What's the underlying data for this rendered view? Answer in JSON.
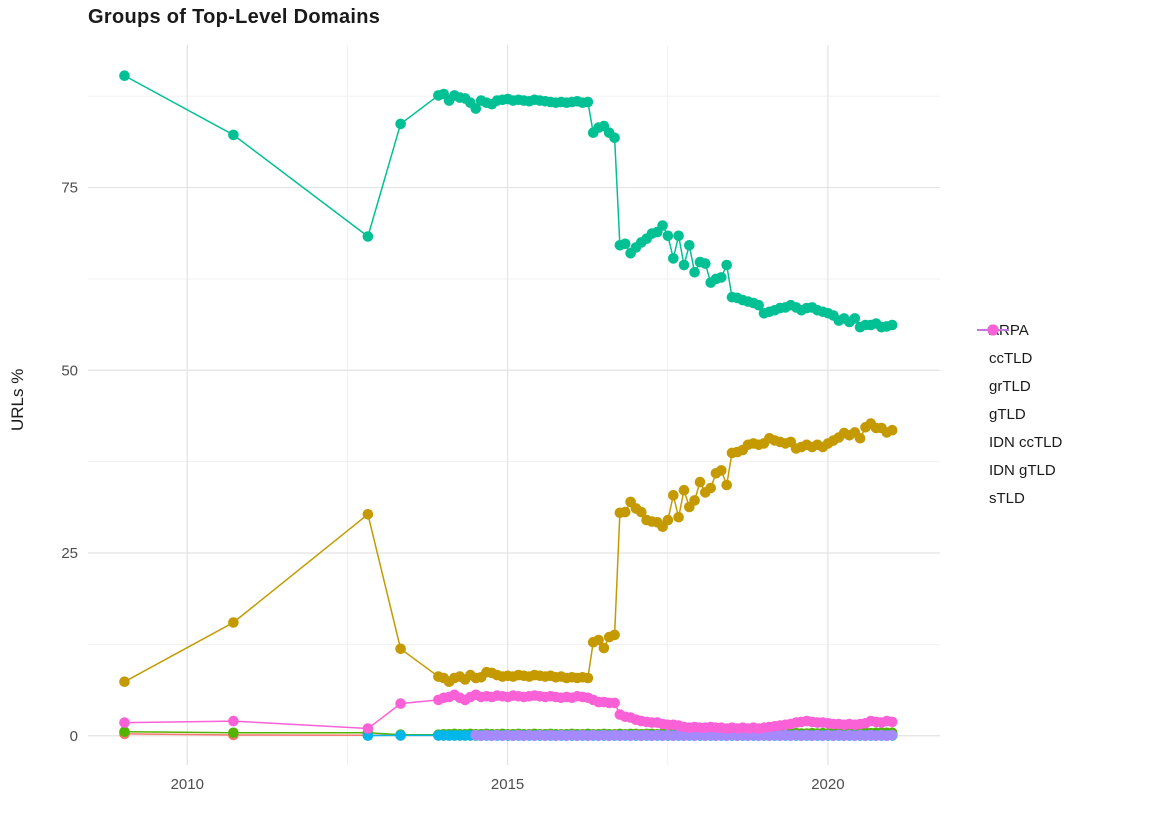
{
  "title": "Groups of Top-Level Domains",
  "chart_data": {
    "type": "line",
    "title": "Groups of Top-Level Domains",
    "xlabel": "",
    "ylabel": "URLs %",
    "xlim": [
      2008.45,
      2021.75
    ],
    "ylim": [
      -4,
      94.5
    ],
    "grid": true,
    "legend_position": "right",
    "x_major_ticks": [
      {
        "value": 2010,
        "label": "2010"
      },
      {
        "value": 2015,
        "label": "2015"
      },
      {
        "value": 2020,
        "label": "2020"
      }
    ],
    "x_minor_ticks": [
      2012.5,
      2017.5
    ],
    "y_major_ticks": [
      {
        "value": 0,
        "label": "0"
      },
      {
        "value": 25,
        "label": "25"
      },
      {
        "value": 50,
        "label": "50"
      },
      {
        "value": 75,
        "label": "75"
      }
    ],
    "y_minor_ticks": [
      12.5,
      37.5,
      62.5,
      87.5
    ],
    "series": [
      {
        "name": "ARPA",
        "color": "#F8766D",
        "segments": [
          {
            "x": [
              2009.02,
              2010.72,
              2012.82,
              2013.33
            ],
            "y": [
              0.25,
              0.1,
              0.08,
              0.05
            ]
          },
          {
            "x0": 2013.92,
            "dx": 0.08333,
            "count": 86,
            "fill": 0.05
          }
        ]
      },
      {
        "name": "ccTLD",
        "color": "#C49A00",
        "segments": [
          {
            "x": [
              2009.02,
              2010.72,
              2012.82,
              2013.33
            ],
            "y": [
              7.4,
              15.5,
              30.3,
              11.9
            ]
          },
          {
            "x0": 2013.92,
            "dx": 0.08333,
            "y": [
              8.1,
              7.9,
              7.4,
              7.9,
              8.1,
              7.7,
              8.3,
              7.9,
              8.0,
              8.7,
              8.6,
              8.3,
              8.1,
              8.2,
              8.1,
              8.3,
              8.2,
              8.1,
              8.3,
              8.2,
              8.1,
              8.2,
              8.0,
              8.1,
              7.9,
              8.0,
              7.9,
              8.0,
              7.9,
              12.8,
              13.1,
              12.0,
              13.5,
              13.8,
              30.5,
              30.6,
              32.0,
              31.1,
              30.6,
              29.5,
              29.3,
              29.2,
              28.6,
              29.5,
              32.9,
              29.9,
              33.6,
              31.3,
              32.2,
              34.7,
              33.3,
              33.9,
              35.9,
              36.3,
              34.3,
              38.7,
              38.8,
              39.1,
              39.8,
              40.0,
              39.8,
              40.0,
              40.7,
              40.4,
              40.2,
              40.0,
              40.2,
              39.3,
              39.5,
              39.8,
              39.5,
              39.8,
              39.5,
              40.0,
              40.4,
              40.8,
              41.4,
              41.1,
              41.5,
              40.7,
              42.2,
              42.7,
              42.1,
              42.1,
              41.5,
              41.8
            ]
          }
        ]
      },
      {
        "name": "grTLD",
        "color": "#53B400",
        "segments": [
          {
            "x": [
              2009.02,
              2010.72,
              2012.82,
              2013.33
            ],
            "y": [
              0.55,
              0.4,
              0.4,
              0.15
            ]
          },
          {
            "x0": 2013.92,
            "dx": 0.08333,
            "y": [
              0.15,
              0.2,
              0.2,
              0.25,
              0.2,
              0.2,
              0.25,
              0.2,
              0.2,
              0.25,
              0.2,
              0.2,
              0.25,
              0.2,
              0.2,
              0.25,
              0.2,
              0.2,
              0.25,
              0.2,
              0.2,
              0.25,
              0.2,
              0.2,
              0.2,
              0.25,
              0.2,
              0.2,
              0.25,
              0.2,
              0.2,
              0.25,
              0.2,
              0.2,
              0.25,
              0.2,
              0.25,
              0.25,
              0.2,
              0.25,
              0.25,
              0.2,
              0.25,
              0.25,
              0.2,
              0.25,
              0.25,
              0.25,
              0.25,
              0.25,
              0.25,
              0.3,
              0.25,
              0.25,
              0.3,
              0.25,
              0.3,
              0.25,
              0.3,
              0.3,
              0.3,
              0.3,
              0.3,
              0.3,
              0.35,
              0.3,
              0.3,
              0.35,
              0.3,
              0.3,
              0.35,
              0.3,
              0.35,
              0.3,
              0.35,
              0.35,
              0.3,
              0.35,
              0.35,
              0.35,
              0.4,
              0.35,
              0.4,
              0.4,
              0.4,
              0.4
            ]
          }
        ]
      },
      {
        "name": "gTLD",
        "color": "#00C094",
        "segments": [
          {
            "x": [
              2009.02,
              2010.72,
              2012.82,
              2013.33
            ],
            "y": [
              90.3,
              82.2,
              68.3,
              83.7
            ]
          },
          {
            "x0": 2013.92,
            "dx": 0.08333,
            "y": [
              87.6,
              87.8,
              86.9,
              87.6,
              87.3,
              87.2,
              86.6,
              85.8,
              86.9,
              86.6,
              86.4,
              86.9,
              87.0,
              87.1,
              86.9,
              87.0,
              86.9,
              86.8,
              87.0,
              86.9,
              86.8,
              86.7,
              86.6,
              86.7,
              86.6,
              86.7,
              86.8,
              86.6,
              86.7,
              82.5,
              83.2,
              83.4,
              82.5,
              81.8,
              67.1,
              67.3,
              66.0,
              66.8,
              67.5,
              68.0,
              68.7,
              68.9,
              69.8,
              68.4,
              65.3,
              68.4,
              64.4,
              67.1,
              63.4,
              64.8,
              64.6,
              62.0,
              62.5,
              62.7,
              64.4,
              60.0,
              59.9,
              59.6,
              59.4,
              59.2,
              58.9,
              57.8,
              58.0,
              58.2,
              58.5,
              58.6,
              58.9,
              58.6,
              58.2,
              58.5,
              58.6,
              58.2,
              58.0,
              57.8,
              57.5,
              56.8,
              57.1,
              56.6,
              57.1,
              55.9,
              56.2,
              56.2,
              56.4,
              55.9,
              56.0,
              56.2
            ]
          }
        ]
      },
      {
        "name": "IDN ccTLD",
        "color": "#00B6EB",
        "segments": [
          {
            "x": [
              2012.82,
              2013.33
            ],
            "y": [
              0.02,
              0.05
            ]
          },
          {
            "x0": 2013.92,
            "dx": 0.08333,
            "count": 86,
            "fill": 0.05
          }
        ]
      },
      {
        "name": "IDN gTLD",
        "color": "#A58AFF",
        "segments": [
          {
            "x0": 2014.5,
            "dx": 0.08333,
            "count": 79,
            "pattern": [
              0.1,
              0.0
            ]
          }
        ]
      },
      {
        "name": "sTLD",
        "color": "#FB61D7",
        "segments": [
          {
            "x": [
              2009.02,
              2010.72,
              2012.82,
              2013.33
            ],
            "y": [
              1.8,
              2.0,
              1.0,
              4.4
            ]
          },
          {
            "x0": 2013.92,
            "dx": 0.08333,
            "y": [
              4.9,
              5.2,
              5.3,
              5.6,
              5.2,
              4.9,
              5.3,
              5.6,
              5.3,
              5.4,
              5.3,
              5.5,
              5.4,
              5.3,
              5.5,
              5.4,
              5.3,
              5.4,
              5.5,
              5.4,
              5.3,
              5.4,
              5.3,
              5.2,
              5.3,
              5.2,
              5.4,
              5.3,
              5.2,
              4.9,
              4.6,
              4.6,
              4.5,
              4.5,
              2.9,
              2.6,
              2.5,
              2.2,
              2.0,
              1.9,
              1.8,
              1.8,
              1.6,
              1.5,
              1.5,
              1.4,
              1.2,
              1.1,
              1.2,
              1.1,
              1.1,
              1.2,
              1.1,
              1.1,
              1.0,
              1.1,
              1.0,
              1.1,
              1.0,
              1.1,
              1.0,
              1.1,
              1.2,
              1.3,
              1.4,
              1.5,
              1.6,
              1.8,
              1.9,
              2.0,
              1.9,
              1.8,
              1.8,
              1.7,
              1.6,
              1.6,
              1.5,
              1.6,
              1.5,
              1.6,
              1.7,
              2.0,
              1.9,
              1.8,
              2.0,
              1.9
            ]
          }
        ]
      }
    ],
    "style": {
      "grid_major_color": "#e3e3e3",
      "grid_minor_color": "#efefef",
      "tick_label_color": "#4d4d4d",
      "point_radius": 5.3,
      "line_width": 1.5
    }
  }
}
